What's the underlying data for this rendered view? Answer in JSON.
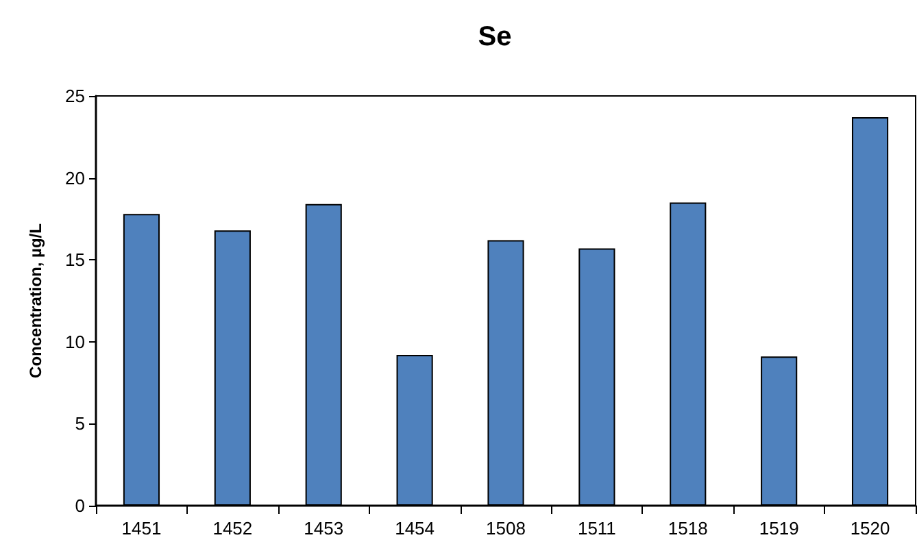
{
  "chart_data": {
    "type": "bar",
    "title": "Se",
    "ylabel": "Concentration, µg/L",
    "categories": [
      "1451",
      "1452",
      "1453",
      "1454",
      "1508",
      "1511",
      "1518",
      "1519",
      "1520"
    ],
    "values": [
      17.8,
      16.8,
      18.4,
      9.2,
      16.2,
      15.7,
      18.5,
      9.1,
      23.7
    ],
    "color": "#4f81bd",
    "ylim": [
      0,
      25
    ],
    "yticks": [
      0,
      5,
      10,
      15,
      20,
      25
    ],
    "grid": false
  }
}
